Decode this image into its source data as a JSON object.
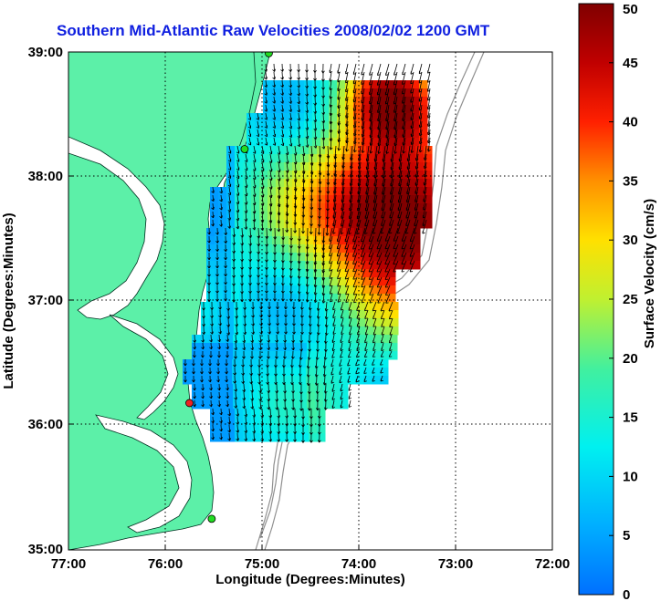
{
  "title": "Southern Mid-Atlantic Raw Velocities 2008/02/02 1200 GMT",
  "x_axis": {
    "label": "Longitude (Degrees:Minutes)",
    "ticks": [
      "77:00",
      "76:00",
      "75:00",
      "74:00",
      "73:00",
      "72:00"
    ],
    "range": [
      -77,
      -72
    ]
  },
  "y_axis": {
    "label": "Latitude (Degrees:Minutes)",
    "ticks": [
      "39:00",
      "38:00",
      "37:00",
      "36:00",
      "35:00"
    ],
    "range": [
      35,
      39
    ]
  },
  "colorbar": {
    "label": "Surface Velocity (cm/s)",
    "ticks": [
      "50",
      "45",
      "40",
      "35",
      "30",
      "25",
      "20",
      "15",
      "10",
      "5",
      "0"
    ],
    "range": [
      0,
      50
    ]
  },
  "colors": {
    "land": "#5cf0a8",
    "grid": "#000000",
    "title": "#1020e0",
    "station_green": "#22dd22",
    "station_red": "#ee2222"
  },
  "stations": [
    {
      "lon": -74.93,
      "lat": 38.99,
      "color": "green"
    },
    {
      "lon": -75.18,
      "lat": 38.22,
      "color": "green"
    },
    {
      "lon": -75.75,
      "lat": 36.18,
      "color": "red"
    },
    {
      "lon": -75.52,
      "lat": 35.25,
      "color": "green"
    }
  ]
}
